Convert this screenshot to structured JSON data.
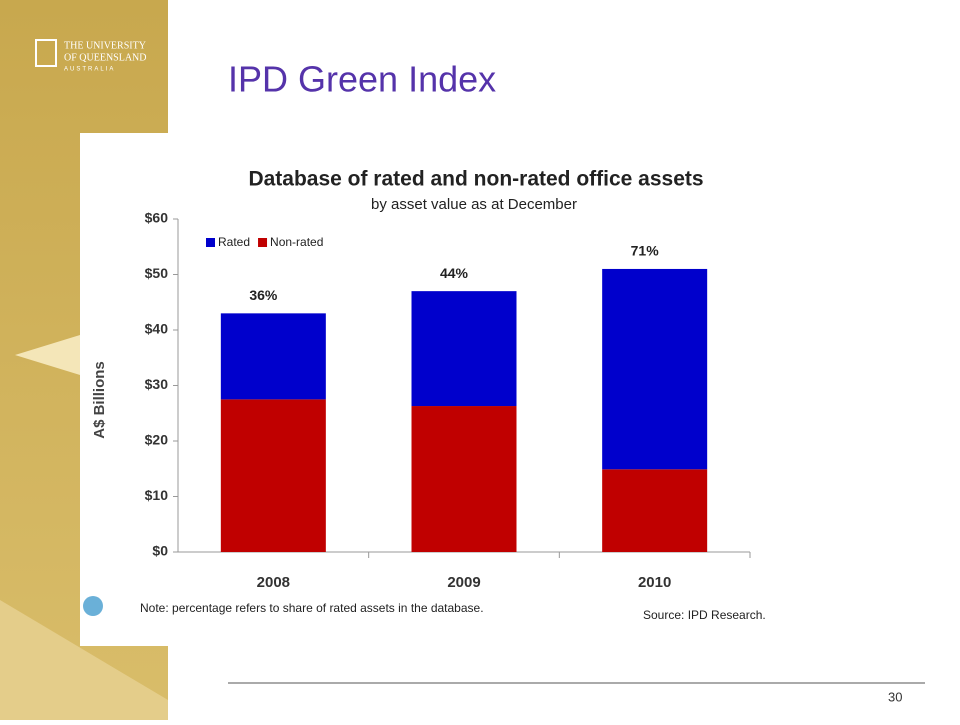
{
  "slide": {
    "logo": [
      "THE UNIVERSITY",
      "OF QUEENSLAND",
      "AUSTRALIA"
    ],
    "title": "IPD Green Index",
    "page_number": "30"
  },
  "chart_data": {
    "type": "stacked_bar",
    "title": "Database of rated and non-rated office assets",
    "subtitle": "by asset value as at December",
    "y_label": "A$ Billions",
    "categories": [
      "2008",
      "2009",
      "2010"
    ],
    "series": [
      {
        "name": "Rated",
        "color": "#0000cc",
        "values": [
          15.5,
          20.7,
          36.1
        ]
      },
      {
        "name": "Non-rated",
        "color": "#c00000",
        "values": [
          27.5,
          26.3,
          14.9
        ]
      }
    ],
    "bar_top_labels": [
      "36%",
      "44%",
      "71%"
    ],
    "ylim": [
      0,
      60
    ],
    "yticks": [
      {
        "value": 0,
        "label": "$0"
      },
      {
        "value": 10,
        "label": "$10"
      },
      {
        "value": 20,
        "label": "$20"
      },
      {
        "value": 30,
        "label": "$30"
      },
      {
        "value": 40,
        "label": "$40"
      },
      {
        "value": 50,
        "label": "$50"
      },
      {
        "value": 60,
        "label": "$60"
      }
    ],
    "legend": "top-left",
    "note": "Note: percentage refers to share of rated assets in the database.",
    "source": "Source: IPD Research."
  }
}
